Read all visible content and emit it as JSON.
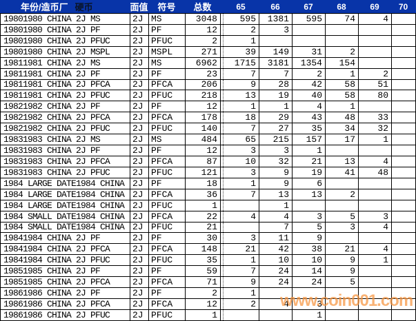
{
  "header": {
    "year_mint": "年份/造币厂",
    "coin": "硬币",
    "denomination": "面值",
    "symbol": "符号",
    "total": "总数",
    "grades": [
      "65",
      "66",
      "67",
      "68",
      "69",
      "70"
    ]
  },
  "colors": {
    "header_bg": "#0834A8",
    "header_text": "#FFFFFF",
    "coin_header_text": "#0A1428",
    "grid": "#000000",
    "watermark": "#F7953F"
  },
  "watermark": "www.coin001.com",
  "rows": [
    {
      "name": "19801980 CHINA 2J MS",
      "denom": "2J",
      "symbol": "MS",
      "total": "3048",
      "g65": "595",
      "g66": "1381",
      "g67": "595",
      "g68": "74",
      "g69": "4",
      "g70": ""
    },
    {
      "name": "19801980 CHINA 2J PF",
      "denom": "2J",
      "symbol": "PF",
      "total": "12",
      "g65": "2",
      "g66": "3",
      "g67": "",
      "g68": "",
      "g69": "",
      "g70": ""
    },
    {
      "name": "19801980 CHINA 2J PFUC",
      "denom": "2J",
      "symbol": "PFUC",
      "total": "2",
      "g65": "1",
      "g66": "",
      "g67": "",
      "g68": "",
      "g69": "",
      "g70": ""
    },
    {
      "name": "19801980 CHINA 2J MSPL",
      "denom": "2J",
      "symbol": "MSPL",
      "total": "271",
      "g65": "39",
      "g66": "149",
      "g67": "31",
      "g68": "2",
      "g69": "",
      "g70": ""
    },
    {
      "name": "19811981 CHINA 2J MS",
      "denom": "2J",
      "symbol": "MS",
      "total": "6962",
      "g65": "1715",
      "g66": "3181",
      "g67": "1354",
      "g68": "154",
      "g69": "",
      "g70": ""
    },
    {
      "name": "19811981 CHINA 2J PF",
      "denom": "2J",
      "symbol": "PF",
      "total": "23",
      "g65": "7",
      "g66": "7",
      "g67": "2",
      "g68": "1",
      "g69": "2",
      "g70": ""
    },
    {
      "name": "19811981 CHINA 2J PFCA",
      "denom": "2J",
      "symbol": "PFCA",
      "total": "206",
      "g65": "9",
      "g66": "28",
      "g67": "42",
      "g68": "58",
      "g69": "51",
      "g70": ""
    },
    {
      "name": "19811981 CHINA 2J PFUC",
      "denom": "2J",
      "symbol": "PFUC",
      "total": "218",
      "g65": "13",
      "g66": "19",
      "g67": "40",
      "g68": "58",
      "g69": "80",
      "g70": ""
    },
    {
      "name": "19821982 CHINA 2J PF",
      "denom": "2J",
      "symbol": "PF",
      "total": "12",
      "g65": "1",
      "g66": "1",
      "g67": "4",
      "g68": "1",
      "g69": "",
      "g70": ""
    },
    {
      "name": "19821982 CHINA 2J PFCA",
      "denom": "2J",
      "symbol": "PFCA",
      "total": "178",
      "g65": "18",
      "g66": "29",
      "g67": "43",
      "g68": "48",
      "g69": "33",
      "g70": ""
    },
    {
      "name": "19821982 CHINA 2J PFUC",
      "denom": "2J",
      "symbol": "PFUC",
      "total": "140",
      "g65": "7",
      "g66": "27",
      "g67": "35",
      "g68": "34",
      "g69": "32",
      "g70": ""
    },
    {
      "name": "19831983 CHINA 2J MS",
      "denom": "2J",
      "symbol": "MS",
      "total": "484",
      "g65": "65",
      "g66": "215",
      "g67": "157",
      "g68": "17",
      "g69": "1",
      "g70": ""
    },
    {
      "name": "19831983 CHINA 2J PF",
      "denom": "2J",
      "symbol": "PF",
      "total": "12",
      "g65": "3",
      "g66": "3",
      "g67": "1",
      "g68": "",
      "g69": "",
      "g70": ""
    },
    {
      "name": "19831983 CHINA 2J PFCA",
      "denom": "2J",
      "symbol": "PFCA",
      "total": "87",
      "g65": "10",
      "g66": "32",
      "g67": "21",
      "g68": "13",
      "g69": "4",
      "g70": ""
    },
    {
      "name": "19831983 CHINA 2J PFUC",
      "denom": "2J",
      "symbol": "PFUC",
      "total": "121",
      "g65": "3",
      "g66": "9",
      "g67": "19",
      "g68": "41",
      "g69": "48",
      "g70": ""
    },
    {
      "name": "1984 LARGE DATE1984 CHINA",
      "denom": "2J",
      "symbol": "PF",
      "total": "18",
      "g65": "1",
      "g66": "9",
      "g67": "6",
      "g68": "",
      "g69": "",
      "g70": ""
    },
    {
      "name": "1984 LARGE DATE1984 CHINA",
      "denom": "2J",
      "symbol": "PFCA",
      "total": "36",
      "g65": "7",
      "g66": "13",
      "g67": "13",
      "g68": "2",
      "g69": "",
      "g70": ""
    },
    {
      "name": "1984 LARGE DATE1984 CHINA",
      "denom": "2J",
      "symbol": "PFUC",
      "total": "1",
      "g65": "",
      "g66": "1",
      "g67": "",
      "g68": "",
      "g69": "",
      "g70": ""
    },
    {
      "name": "1984 SMALL DATE1984 CHINA",
      "denom": "2J",
      "symbol": "PFCA",
      "total": "22",
      "g65": "4",
      "g66": "4",
      "g67": "3",
      "g68": "5",
      "g69": "3",
      "g70": ""
    },
    {
      "name": "1984 SMALL DATE1984 CHINA",
      "denom": "2J",
      "symbol": "PFUC",
      "total": "21",
      "g65": "",
      "g66": "7",
      "g67": "5",
      "g68": "3",
      "g69": "4",
      "g70": ""
    },
    {
      "name": "19841984 CHINA 2J PF",
      "denom": "2J",
      "symbol": "PF",
      "total": "30",
      "g65": "3",
      "g66": "11",
      "g67": "9",
      "g68": "",
      "g69": "",
      "g70": ""
    },
    {
      "name": "19841984 CHINA 2J PFCA",
      "denom": "2J",
      "symbol": "PFCA",
      "total": "148",
      "g65": "21",
      "g66": "42",
      "g67": "38",
      "g68": "21",
      "g69": "4",
      "g70": ""
    },
    {
      "name": "19841984 CHINA 2J PFUC",
      "denom": "2J",
      "symbol": "PFUC",
      "total": "35",
      "g65": "1",
      "g66": "10",
      "g67": "10",
      "g68": "9",
      "g69": "1",
      "g70": ""
    },
    {
      "name": "19851985 CHINA 2J PF",
      "denom": "2J",
      "symbol": "PF",
      "total": "59",
      "g65": "7",
      "g66": "24",
      "g67": "14",
      "g68": "9",
      "g69": "",
      "g70": ""
    },
    {
      "name": "19851985 CHINA 2J PFCA",
      "denom": "2J",
      "symbol": "PFCA",
      "total": "71",
      "g65": "9",
      "g66": "24",
      "g67": "24",
      "g68": "5",
      "g69": "",
      "g70": ""
    },
    {
      "name": "19861986 CHINA 2J PF",
      "denom": "2J",
      "symbol": "PF",
      "total": "2",
      "g65": "1",
      "g66": "",
      "g67": "",
      "g68": "",
      "g69": "",
      "g70": ""
    },
    {
      "name": "19861986 CHINA 2J PFCA",
      "denom": "2J",
      "symbol": "PFCA",
      "total": "12",
      "g65": "2",
      "g66": "4",
      "g67": "3",
      "g68": "",
      "g69": "",
      "g70": ""
    },
    {
      "name": "19861986 CHINA 2J PFUC",
      "denom": "2J",
      "symbol": "PFUC",
      "total": "1",
      "g65": "",
      "g66": "",
      "g67": "1",
      "g68": "",
      "g69": "",
      "g70": ""
    }
  ]
}
